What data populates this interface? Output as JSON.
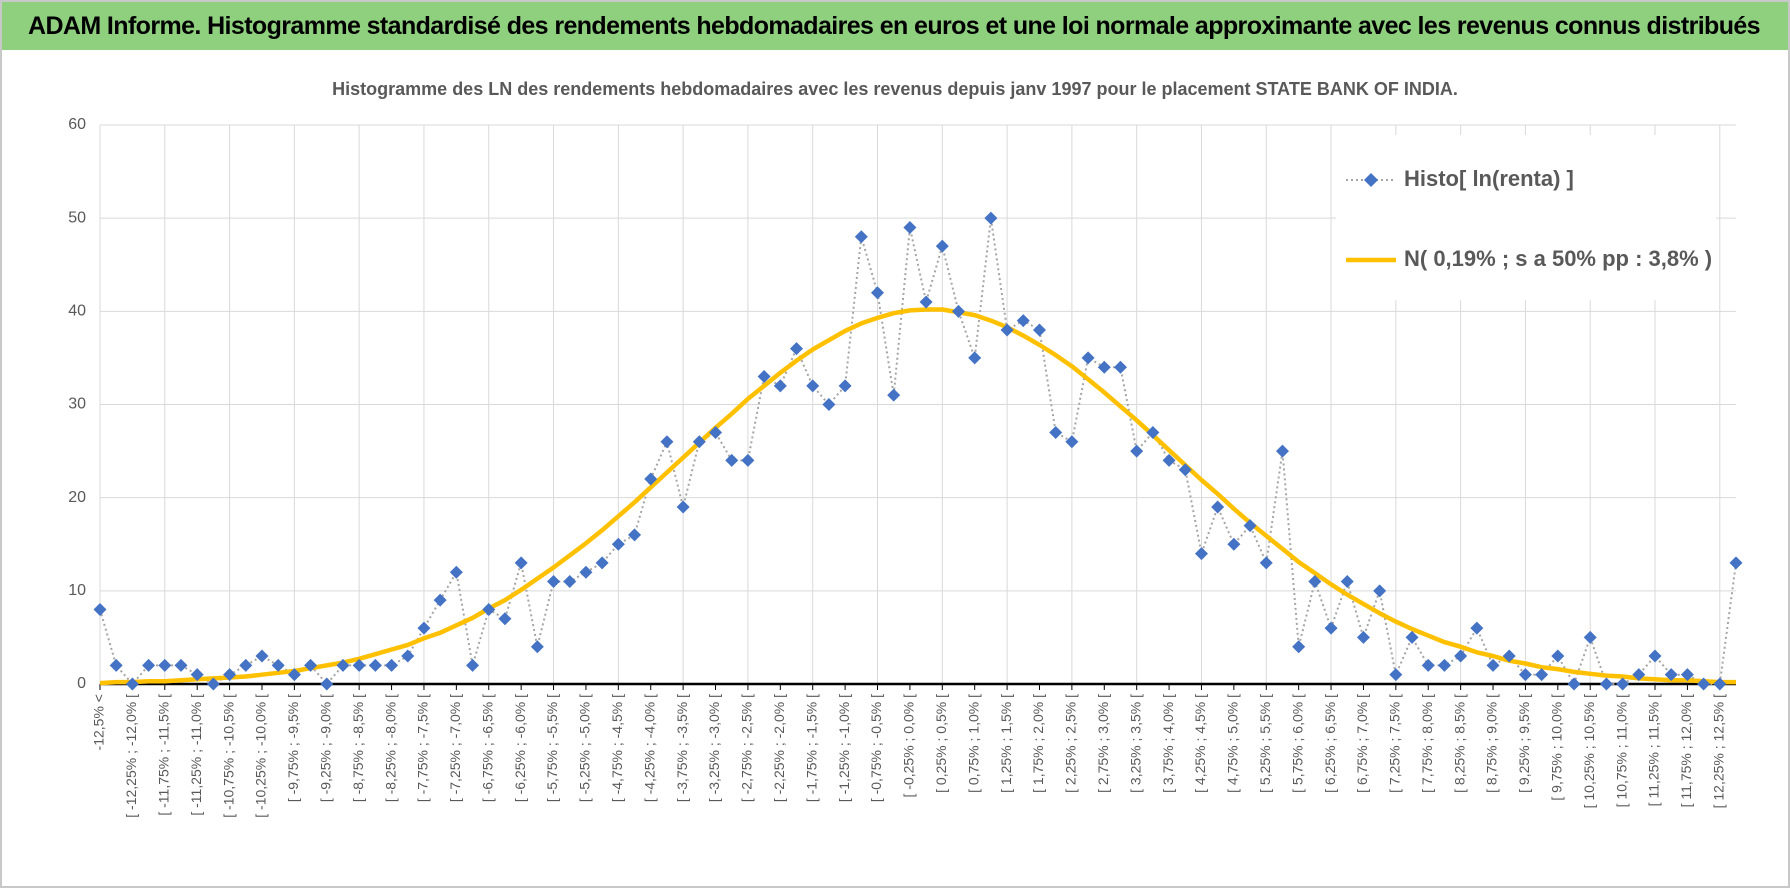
{
  "header": {
    "title": "ADAM Informe. Histogramme standardisé des rendements hebdomadaires en euros et une loi normale approximante avec les revenus connus distribués"
  },
  "chart_data": {
    "type": "line",
    "title": "Histogramme des LN des rendements hebdomadaires avec les revenus depuis janv 1997 pour le placement STATE BANK OF INDIA.",
    "categories": [
      "-12,5% <",
      null,
      "[ -12,25% ; -12,0% [",
      null,
      "[ -11,75% ; -11,5% [",
      null,
      "[ -11,25% ; -11,0% [",
      null,
      "[ -10,75% ; -10,5% [",
      null,
      "[ -10,25% ; -10,0% [",
      null,
      "[ -9,75% ; -9,5% [",
      null,
      "[ -9,25% ; -9,0% [",
      null,
      "[ -8,75% ; -8,5% [",
      null,
      "[ -8,25% ; -8,0% [",
      null,
      "[ -7,75% ; -7,5% [",
      null,
      "[ -7,25% ; -7,0% [",
      null,
      "[ -6,75% ; -6,5% [",
      null,
      "[ -6,25% ; -6,0% [",
      null,
      "[ -5,75% ; -5,5% [",
      null,
      "[ -5,25% ; -5,0% [",
      null,
      "[ -4,75% ; -4,5% [",
      null,
      "[ -4,25% ; -4,0% [",
      null,
      "[ -3,75% ; -3,5% [",
      null,
      "[ -3,25% ; -3,0% [",
      null,
      "[ -2,75% ; -2,5% [",
      null,
      "[ -2,25% ; -2,0% [",
      null,
      "[ -1,75% ; -1,5% [",
      null,
      "[ -1,25% ; -1,0% [",
      null,
      "[ -0,75% ; -0,5% [",
      null,
      "[ -0,25% ; 0,0% [",
      null,
      "[ 0,25% ; 0,5% [",
      null,
      "[ 0,75% ; 1,0% [",
      null,
      "[ 1,25% ; 1,5% [",
      null,
      "[ 1,75% ; 2,0% [",
      null,
      "[ 2,25% ; 2,5% [",
      null,
      "[ 2,75% ; 3,0% [",
      null,
      "[ 3,25% ; 3,5% [",
      null,
      "[ 3,75% ; 4,0% [",
      null,
      "[ 4,25% ; 4,5% [",
      null,
      "[ 4,75% ; 5,0% [",
      null,
      "[ 5,25% ; 5,5% [",
      null,
      "[ 5,75% ; 6,0% [",
      null,
      "[ 6,25% ; 6,5% [",
      null,
      "[ 6,75% ; 7,0% [",
      null,
      "[ 7,25% ; 7,5% [",
      null,
      "[ 7,75% ; 8,0% [",
      null,
      "[ 8,25% ; 8,5% [",
      null,
      "[ 8,75% ; 9,0% [",
      null,
      "[ 9,25% ; 9,5% [",
      null,
      "[ 9,75% ; 10,0% [",
      null,
      "[ 10,25% ; 10,5% [",
      null,
      "[ 10,75% ; 11,0% [",
      null,
      "[ 11,25% ; 11,5% [",
      null,
      "[ 11,75% ; 12,0% [",
      null,
      "[ 12,25% ; 12,5% [",
      null
    ],
    "series": [
      {
        "name": "Histo[ ln(renta) ]",
        "color": "#4472c4",
        "line_color": "#a5a5a5",
        "line_style": "dotted",
        "marker": "diamond",
        "values": [
          8,
          2,
          0,
          2,
          2,
          2,
          1,
          0,
          1,
          2,
          3,
          2,
          1,
          2,
          0,
          2,
          2,
          2,
          2,
          3,
          6,
          9,
          12,
          2,
          8,
          7,
          13,
          4,
          11,
          11,
          12,
          13,
          15,
          16,
          22,
          26,
          19,
          26,
          27,
          24,
          24,
          33,
          32,
          36,
          32,
          30,
          32,
          48,
          42,
          31,
          49,
          41,
          47,
          40,
          35,
          50,
          38,
          39,
          38,
          27,
          26,
          35,
          34,
          34,
          25,
          27,
          24,
          23,
          14,
          19,
          15,
          17,
          13,
          25,
          4,
          11,
          6,
          11,
          5,
          10,
          1,
          5,
          2,
          2,
          3,
          6,
          2,
          3,
          1,
          1,
          3,
          0,
          5,
          0,
          0,
          1,
          3,
          1,
          1,
          0,
          0,
          13
        ]
      },
      {
        "name": "N( 0,19% ; s a 50% pp : 3,8% )",
        "color": "#ffc000",
        "line_style": "solid",
        "marker": "none",
        "values": [
          0.1,
          0.2,
          0.2,
          0.3,
          0.3,
          0.4,
          0.5,
          0.6,
          0.7,
          0.8,
          1.0,
          1.2,
          1.4,
          1.7,
          2.0,
          2.3,
          2.7,
          3.2,
          3.7,
          4.2,
          4.9,
          5.5,
          6.3,
          7.1,
          8.1,
          9.0,
          10.1,
          11.3,
          12.5,
          13.8,
          15.1,
          16.5,
          18.0,
          19.5,
          21.1,
          22.7,
          24.3,
          25.9,
          27.5,
          29.0,
          30.6,
          32.0,
          33.4,
          34.7,
          35.9,
          36.9,
          37.9,
          38.7,
          39.3,
          39.8,
          40.1,
          40.2,
          40.2,
          39.9,
          39.6,
          39.0,
          38.3,
          37.4,
          36.4,
          35.3,
          34.1,
          32.7,
          31.3,
          29.8,
          28.3,
          26.7,
          25.1,
          23.5,
          21.9,
          20.4,
          18.8,
          17.3,
          15.9,
          14.5,
          13.1,
          11.9,
          10.7,
          9.6,
          8.6,
          7.6,
          6.7,
          5.9,
          5.2,
          4.5,
          4.0,
          3.4,
          3.0,
          2.5,
          2.2,
          1.8,
          1.6,
          1.3,
          1.1,
          0.9,
          0.8,
          0.6,
          0.5,
          0.4,
          0.4,
          0.3,
          0.2,
          0.2
        ]
      }
    ],
    "ylim": [
      0,
      60
    ],
    "yticks": [
      0,
      10,
      20,
      30,
      40,
      50,
      60
    ],
    "grid": true,
    "legend": "top-right"
  }
}
